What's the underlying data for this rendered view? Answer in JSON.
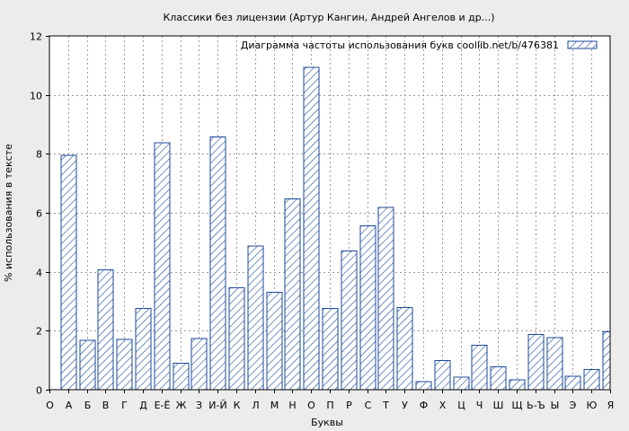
{
  "colors": {
    "background": "#ececec",
    "plot_background": "#ffffff",
    "bar_stroke": "#1b4a9a",
    "bar_hatch": "#1b4a9a",
    "grid": "#9a9a9a",
    "axis": "#000000"
  },
  "chart_data": {
    "type": "bar",
    "title": "Классики без лицензии (Артур Кангин, Андрей Ангелов и др...)",
    "xlabel": "Буквы",
    "ylabel": "% использования в тексте",
    "ylim": [
      0,
      12
    ],
    "yticks": [
      0,
      2,
      4,
      6,
      8,
      10,
      12
    ],
    "grid": true,
    "legend_position": "top-right",
    "hatch": "diagonal",
    "categories": [
      "О",
      "А",
      "Б",
      "В",
      "Г",
      "Д",
      "Е-Ё",
      "Ж",
      "З",
      "И-Й",
      "К",
      "Л",
      "М",
      "Н",
      "О",
      "П",
      "Р",
      "С",
      "Т",
      "У",
      "Ф",
      "Х",
      "Ц",
      "Ч",
      "Ш",
      "Щ",
      "Ь-Ъ",
      "Ы",
      "Э",
      "Ю",
      "Я"
    ],
    "series": [
      {
        "name": "Диаграмма частоты использования букв  coollib.net/b/476381",
        "values": [
          null,
          7.95,
          1.67,
          4.07,
          1.7,
          2.75,
          8.38,
          0.9,
          1.73,
          8.57,
          3.46,
          4.88,
          3.31,
          6.47,
          10.93,
          2.75,
          4.7,
          5.56,
          6.18,
          2.78,
          0.27,
          0.99,
          0.43,
          1.51,
          0.78,
          0.33,
          1.87,
          1.76,
          0.46,
          0.69,
          1.97
        ]
      }
    ]
  }
}
